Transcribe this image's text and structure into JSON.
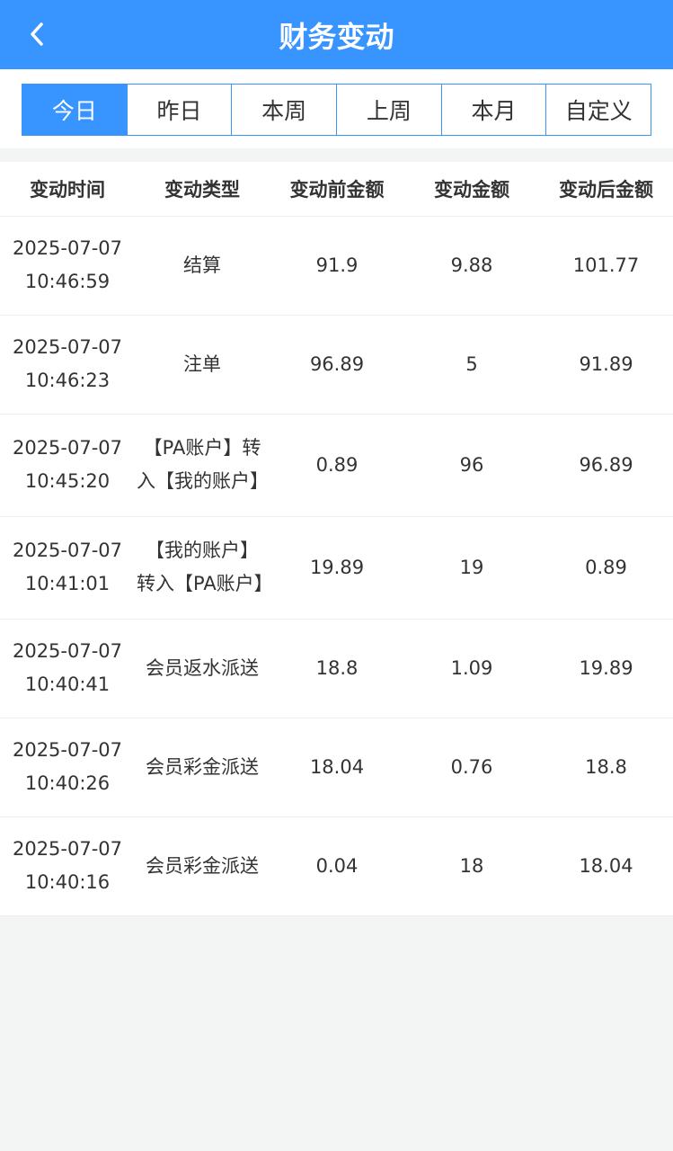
{
  "header": {
    "title": "财务变动",
    "back_icon": "chevron-left-icon"
  },
  "tabs": [
    {
      "label": "今日",
      "active": true
    },
    {
      "label": "昨日"
    },
    {
      "label": "本周"
    },
    {
      "label": "上周"
    },
    {
      "label": "本月"
    },
    {
      "label": "自定义"
    }
  ],
  "table": {
    "columns": [
      "变动时间",
      "变动类型",
      "变动前金额",
      "变动金额",
      "变动后金额"
    ],
    "rows": [
      {
        "date": "2025-07-07",
        "time": "10:46:59",
        "type": "结算",
        "before": "91.9",
        "amount": "9.88",
        "after": "101.77"
      },
      {
        "date": "2025-07-07",
        "time": "10:46:23",
        "type": "注单",
        "before": "96.89",
        "amount": "5",
        "after": "91.89"
      },
      {
        "date": "2025-07-07",
        "time": "10:45:20",
        "type": "【PA账户】转入【我的账户】",
        "before": "0.89",
        "amount": "96",
        "after": "96.89"
      },
      {
        "date": "2025-07-07",
        "time": "10:41:01",
        "type": "【我的账户】转入【PA账户】",
        "before": "19.89",
        "amount": "19",
        "after": "0.89"
      },
      {
        "date": "2025-07-07",
        "time": "10:40:41",
        "type": "会员返水派送",
        "before": "18.8",
        "amount": "1.09",
        "after": "19.89"
      },
      {
        "date": "2025-07-07",
        "time": "10:40:26",
        "type": "会员彩金派送",
        "before": "18.04",
        "amount": "0.76",
        "after": "18.8"
      },
      {
        "date": "2025-07-07",
        "time": "10:40:16",
        "type": "会员彩金派送",
        "before": "0.04",
        "amount": "18",
        "after": "18.04"
      }
    ]
  }
}
